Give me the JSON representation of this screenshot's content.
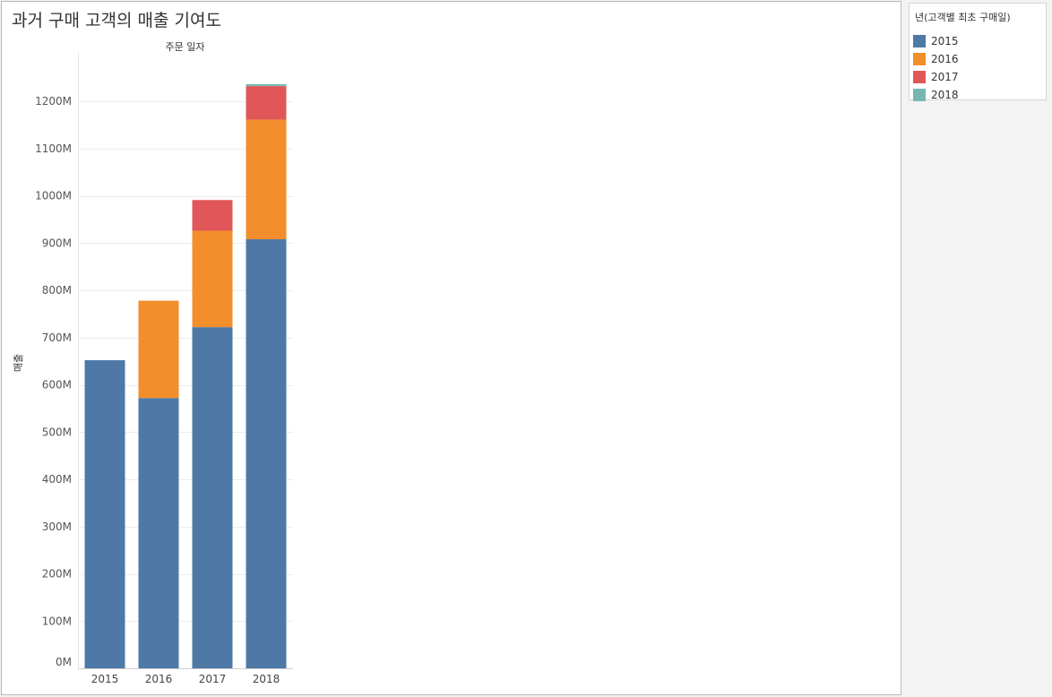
{
  "title": "과거 구매 고객의 매출 기여도",
  "legend": {
    "title": "년(고객별 최초 구매일)",
    "items": [
      {
        "label": "2015",
        "color": "#4e79a7"
      },
      {
        "label": "2016",
        "color": "#f28e2b"
      },
      {
        "label": "2017",
        "color": "#e15759"
      },
      {
        "label": "2018",
        "color": "#76b7b2"
      }
    ]
  },
  "chart_data": {
    "type": "bar",
    "stacked": true,
    "title": "과거 구매 고객의 매출 기여도",
    "column_header": "주문 일자",
    "xlabel": "",
    "ylabel": "매출",
    "categories": [
      "2015",
      "2016",
      "2017",
      "2018"
    ],
    "ylim": [
      0,
      1300
    ],
    "yticks": [
      0,
      100,
      200,
      300,
      400,
      500,
      600,
      700,
      800,
      900,
      1000,
      1100,
      1200
    ],
    "ytick_labels": [
      "0M",
      "100M",
      "200M",
      "300M",
      "400M",
      "500M",
      "600M",
      "700M",
      "800M",
      "900M",
      "1000M",
      "1100M",
      "1200M"
    ],
    "unit": "M",
    "grid": true,
    "legend_position": "right",
    "series": [
      {
        "name": "2015",
        "color": "#4e79a7",
        "values": [
          652,
          572,
          722,
          908
        ]
      },
      {
        "name": "2016",
        "color": "#f28e2b",
        "values": [
          0,
          206,
          204,
          253
        ]
      },
      {
        "name": "2017",
        "color": "#e15759",
        "values": [
          0,
          0,
          65,
          71
        ]
      },
      {
        "name": "2018",
        "color": "#76b7b2",
        "values": [
          0,
          0,
          0,
          4
        ]
      }
    ]
  }
}
